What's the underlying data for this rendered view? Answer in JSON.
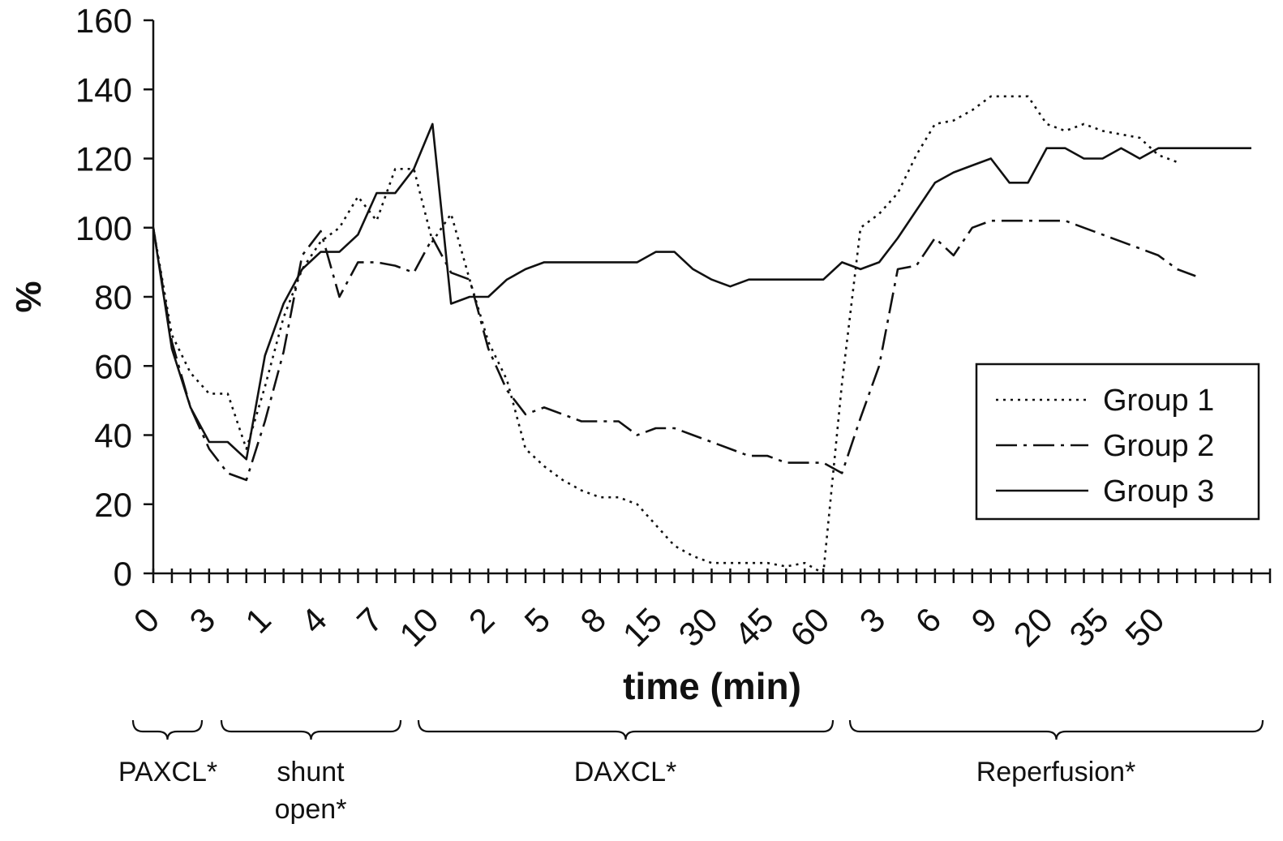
{
  "chart_data": {
    "type": "line",
    "xlabel": "time (min)",
    "ylabel": "%",
    "ylim": [
      0,
      160
    ],
    "yticks": [
      0,
      20,
      40,
      60,
      80,
      100,
      120,
      140,
      160
    ],
    "legend_position": "right",
    "grid": false,
    "x_tick_labels": [
      "0",
      "3",
      "1",
      "4",
      "7",
      "10",
      "2",
      "5",
      "8",
      "15",
      "30",
      "45",
      "60",
      "3",
      "6",
      "9",
      "20",
      "35",
      "50"
    ],
    "series": [
      {
        "name": "Group 1",
        "dash": "dotted",
        "values": [
          100,
          69,
          58,
          52,
          52,
          36,
          54,
          74,
          88,
          96,
          100,
          109,
          102,
          117,
          117,
          96,
          104,
          85,
          67,
          56,
          36,
          31,
          27,
          24,
          22,
          22,
          20,
          14,
          8,
          5,
          3,
          3,
          3,
          3,
          2,
          3,
          0,
          55,
          100,
          104,
          110,
          121,
          130,
          131,
          134,
          138,
          138,
          138,
          130,
          128,
          130,
          128,
          127,
          126,
          121,
          119
        ]
      },
      {
        "name": "Group 2",
        "dash": "dash-dot",
        "values": [
          100,
          67,
          48,
          36,
          29,
          27,
          44,
          64,
          92,
          99,
          80,
          90,
          90,
          89,
          87,
          97,
          87,
          85,
          65,
          53,
          46,
          48,
          46,
          44,
          44,
          44,
          40,
          42,
          42,
          40,
          38,
          36,
          34,
          34,
          32,
          32,
          32,
          29,
          45,
          60,
          88,
          89,
          97,
          92,
          100,
          102,
          102,
          102,
          102,
          102,
          100,
          98,
          96,
          94,
          92,
          88,
          86
        ]
      },
      {
        "name": "Group 3",
        "values": [
          100,
          65,
          48,
          38,
          38,
          33,
          63,
          78,
          88,
          93,
          93,
          98,
          110,
          110,
          117,
          130,
          78,
          80,
          80,
          85,
          88,
          90,
          90,
          90,
          90,
          90,
          90,
          93,
          93,
          88,
          85,
          83,
          85,
          85,
          85,
          85,
          85,
          90,
          88,
          90,
          97,
          105,
          113,
          116,
          118,
          120,
          113,
          113,
          123,
          123,
          120,
          120,
          123,
          120,
          123,
          123,
          123,
          123,
          123,
          123
        ]
      }
    ],
    "phases": [
      {
        "label": "PAXCL*"
      },
      {
        "label": "shunt\nopen*"
      },
      {
        "label": "DAXCL*"
      },
      {
        "label": "Reperfusion*"
      }
    ]
  }
}
